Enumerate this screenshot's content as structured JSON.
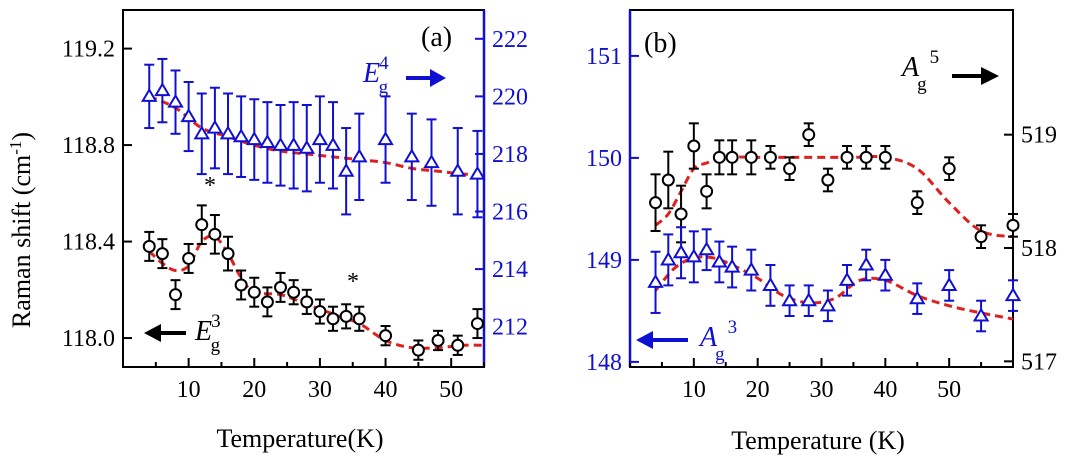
{
  "chart_data": [
    {
      "type": "scatter",
      "panel_label": "(a)",
      "xlabel": "Temperature(K)",
      "ylabel_left": "Raman shift (cm",
      "ylabel_left_sup": "-1",
      "ylabel_left_close": ")",
      "xlim": [
        0,
        55
      ],
      "ylim_left": [
        117.88,
        119.36
      ],
      "ylim_right": [
        210.6,
        223.0
      ],
      "xticks": [
        "10",
        "20",
        "30",
        "40",
        "50"
      ],
      "yticks_left": [
        "118.0",
        "118.4",
        "118.8",
        "119.2"
      ],
      "yticks_right": [
        "212",
        "214",
        "216",
        "218",
        "220",
        "222"
      ],
      "left_color": "#000000",
      "right_color": "#1010d0",
      "fit_color": "#e02020",
      "series": [
        {
          "name_base": "E",
          "name_sub": "g",
          "name_sup": "3",
          "axis": "left",
          "marker": "circle",
          "color": "#000000",
          "x": [
            4,
            6,
            8,
            10,
            12,
            14,
            16,
            18,
            20,
            22,
            24,
            26,
            28,
            30,
            32,
            34,
            36,
            40,
            45,
            48,
            51,
            54
          ],
          "y": [
            118.38,
            118.35,
            118.18,
            118.33,
            118.47,
            118.43,
            118.35,
            118.22,
            118.19,
            118.15,
            118.21,
            118.19,
            118.15,
            118.11,
            118.08,
            118.09,
            118.08,
            118.01,
            117.95,
            117.99,
            117.97,
            118.06
          ],
          "yerr": [
            0.06,
            0.06,
            0.06,
            0.06,
            0.08,
            0.08,
            0.07,
            0.06,
            0.06,
            0.06,
            0.06,
            0.05,
            0.05,
            0.05,
            0.05,
            0.05,
            0.05,
            0.04,
            0.04,
            0.04,
            0.04,
            0.06
          ],
          "fit_x": [
            4,
            6,
            8,
            10,
            12,
            14,
            16,
            18,
            20,
            24,
            28,
            32,
            36,
            40,
            44,
            48,
            52,
            55
          ],
          "fit_y": [
            118.36,
            118.31,
            118.28,
            118.3,
            118.4,
            118.42,
            118.35,
            118.25,
            118.19,
            118.18,
            118.14,
            118.1,
            118.06,
            117.99,
            117.96,
            117.96,
            117.97,
            117.97
          ]
        },
        {
          "name_base": "E",
          "name_sub": "g",
          "name_sup": "4",
          "axis": "right",
          "marker": "triangle",
          "color": "#1010d0",
          "x": [
            4,
            6,
            8,
            10,
            12,
            14,
            16,
            18,
            20,
            22,
            24,
            26,
            28,
            30,
            32,
            34,
            36,
            40,
            44,
            47,
            51,
            54
          ],
          "y": [
            220.0,
            220.2,
            219.8,
            219.3,
            218.7,
            218.9,
            218.7,
            218.6,
            218.5,
            218.4,
            218.3,
            218.3,
            218.2,
            218.5,
            218.3,
            217.4,
            217.9,
            218.5,
            217.9,
            217.7,
            217.4,
            217.3
          ],
          "yerr": [
            1.1,
            1.1,
            1.1,
            1.2,
            1.4,
            1.4,
            1.4,
            1.4,
            1.4,
            1.4,
            1.4,
            1.5,
            1.5,
            1.5,
            1.5,
            1.5,
            1.5,
            1.5,
            1.5,
            1.5,
            1.5,
            1.5
          ],
          "fit_x": [
            4,
            8,
            12,
            16,
            20,
            24,
            28,
            32,
            36,
            40,
            44,
            48,
            52,
            55
          ],
          "fit_y": [
            220.0,
            219.6,
            218.9,
            218.6,
            218.3,
            218.1,
            218.0,
            217.9,
            217.8,
            217.7,
            217.5,
            217.4,
            217.3,
            217.3
          ]
        }
      ],
      "annotations": [
        "*",
        "*"
      ]
    },
    {
      "type": "scatter",
      "panel_label": "(b)",
      "xlabel": "Temperature (K)",
      "xlim": [
        0,
        60
      ],
      "ylim_left": [
        147.95,
        151.45
      ],
      "ylim_right": [
        516.95,
        520.1
      ],
      "xticks": [
        "10",
        "20",
        "30",
        "40",
        "50"
      ],
      "yticks_left": [
        "148",
        "149",
        "150",
        "151"
      ],
      "yticks_right": [
        "517",
        "518",
        "519"
      ],
      "left_color": "#1010d0",
      "right_color": "#000000",
      "fit_color": "#e02020",
      "series": [
        {
          "name_base": "A",
          "name_sub": "g",
          "name_sup": "5",
          "axis": "right",
          "marker": "circle",
          "color": "#000000",
          "x": [
            4,
            6,
            8,
            10,
            12,
            14,
            16,
            19,
            22,
            25,
            28,
            31,
            34,
            37,
            40,
            45,
            50,
            55,
            60
          ],
          "y": [
            518.4,
            518.6,
            518.3,
            518.9,
            518.5,
            518.8,
            518.8,
            518.8,
            518.8,
            518.7,
            519.0,
            518.6,
            518.8,
            518.8,
            518.8,
            518.4,
            518.7,
            518.1,
            518.2
          ],
          "yerr": [
            0.25,
            0.25,
            0.25,
            0.2,
            0.15,
            0.15,
            0.15,
            0.15,
            0.1,
            0.1,
            0.1,
            0.1,
            0.1,
            0.1,
            0.1,
            0.1,
            0.1,
            0.1,
            0.1
          ],
          "fit_x": [
            4,
            6,
            8,
            10,
            12,
            15,
            20,
            25,
            30,
            35,
            40,
            45,
            50,
            55,
            60
          ],
          "fit_y": [
            518.2,
            518.3,
            518.5,
            518.7,
            518.75,
            518.8,
            518.8,
            518.8,
            518.8,
            518.8,
            518.8,
            518.7,
            518.4,
            518.15,
            518.1
          ]
        },
        {
          "name_base": "A",
          "name_sub": "g",
          "name_sup": "3",
          "axis": "left",
          "marker": "triangle",
          "color": "#1010d0",
          "x": [
            4,
            6,
            8,
            10,
            12,
            14,
            16,
            19,
            22,
            25,
            28,
            31,
            34,
            37,
            40,
            45,
            50,
            55,
            60
          ],
          "y": [
            148.78,
            149.0,
            149.07,
            149.03,
            149.1,
            148.98,
            148.93,
            148.9,
            148.75,
            148.6,
            148.6,
            148.55,
            148.8,
            148.95,
            148.85,
            148.62,
            148.75,
            148.45,
            148.65
          ],
          "yerr": [
            0.3,
            0.25,
            0.25,
            0.25,
            0.2,
            0.2,
            0.2,
            0.2,
            0.2,
            0.15,
            0.15,
            0.15,
            0.15,
            0.15,
            0.15,
            0.15,
            0.15,
            0.15,
            0.15
          ],
          "fit_x": [
            4,
            7,
            10,
            13,
            16,
            20,
            24,
            28,
            32,
            36,
            40,
            45,
            50,
            55,
            60
          ],
          "fit_y": [
            148.7,
            148.92,
            149.02,
            149.02,
            148.95,
            148.82,
            148.65,
            148.58,
            148.62,
            148.8,
            148.8,
            148.65,
            148.55,
            148.48,
            148.42
          ]
        }
      ],
      "annotations": []
    }
  ]
}
